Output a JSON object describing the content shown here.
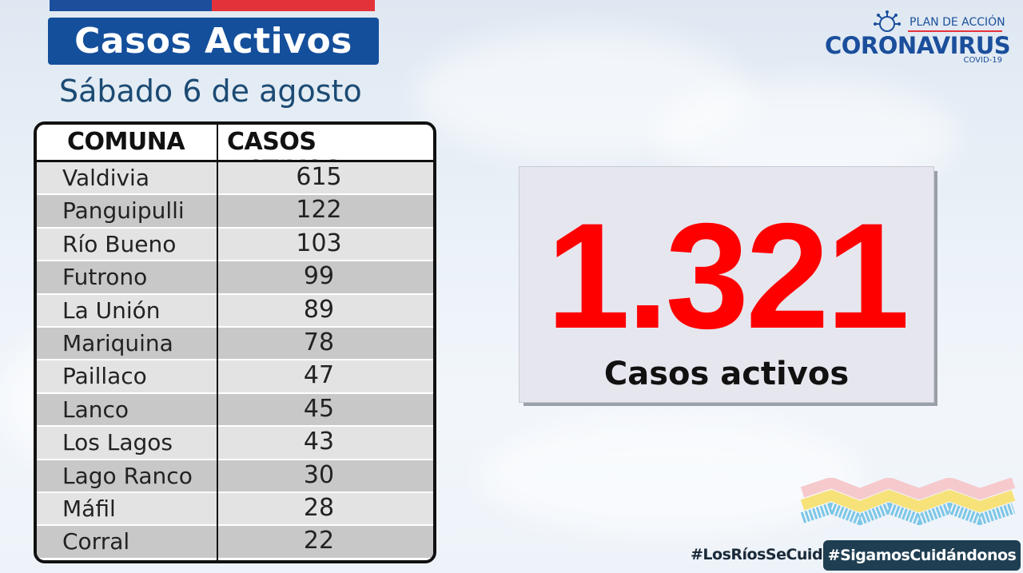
{
  "header": {
    "title": "Casos Activos",
    "date": "Sábado 6 de agosto"
  },
  "logo": {
    "plan": "PLAN DE ACCIÓN",
    "main": "CORONAVIRUS",
    "sub": "COVID-19",
    "icon": "virus-icon"
  },
  "table": {
    "columns": [
      "COMUNA",
      "CASOS ACTIVOS"
    ],
    "rows": [
      {
        "comuna": "Valdivia",
        "casos": "615"
      },
      {
        "comuna": "Panguipulli",
        "casos": "122"
      },
      {
        "comuna": "Río Bueno",
        "casos": "103"
      },
      {
        "comuna": "Futrono",
        "casos": "99"
      },
      {
        "comuna": "La Unión",
        "casos": "89"
      },
      {
        "comuna": "Mariquina",
        "casos": "78"
      },
      {
        "comuna": "Paillaco",
        "casos": "47"
      },
      {
        "comuna": "Lanco",
        "casos": "45"
      },
      {
        "comuna": "Los Lagos",
        "casos": "43"
      },
      {
        "comuna": "Lago Ranco",
        "casos": "30"
      },
      {
        "comuna": "Máfil",
        "casos": "28"
      },
      {
        "comuna": "Corral",
        "casos": "22"
      }
    ]
  },
  "total": {
    "value": "1.321",
    "label": "Casos activos"
  },
  "hashtags": {
    "primary": "#LosRíosSeCuida",
    "secondary": "#SigamosCuidándonos"
  },
  "colors": {
    "brand_blue": "#144f9b",
    "brand_red": "#e4323b",
    "total_red": "#ff0000",
    "hashtag_box": "#1f3e52",
    "ribbon_colors": [
      "#f6c9cc",
      "#f7e27a",
      "#7cc6e6"
    ]
  }
}
